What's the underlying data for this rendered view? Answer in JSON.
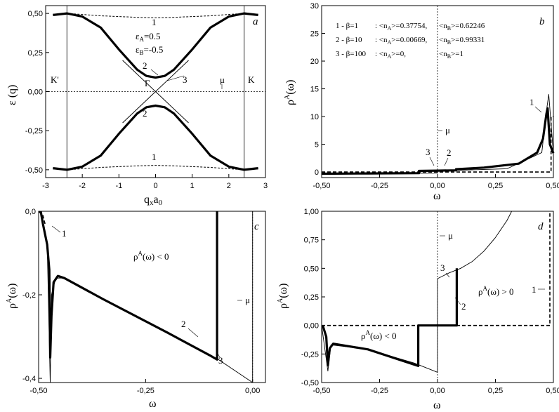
{
  "panels": [
    {
      "letter": "a",
      "xlabel": "q_x a_0",
      "ylabel": "ε (q)",
      "xlim": [
        -3,
        3
      ],
      "ylim": [
        -0.55,
        0.55
      ],
      "xticks": [
        "-3",
        "-2",
        "-1",
        "0",
        "1",
        "2",
        "3"
      ],
      "xtick_values": [
        -3,
        -2,
        -1,
        0,
        1,
        2,
        3
      ],
      "yticks": [
        "-0,50",
        "-0,25",
        "0,00",
        "0,25",
        "0,50"
      ],
      "ytick_values": [
        -0.5,
        -0.25,
        0,
        0.25,
        0.5
      ],
      "annotations": [
        "1",
        "2",
        "3",
        "2",
        "1",
        "Γ",
        "μ",
        "K'",
        "K",
        "ε_A=0.5",
        "ε_B=-0.5"
      ]
    },
    {
      "letter": "b",
      "xlabel": "ω",
      "ylabel": "ρ^A(ω)",
      "xlim": [
        -0.5,
        0.5
      ],
      "ylim": [
        -1,
        30
      ],
      "xticks": [
        "-0,50",
        "-0,25",
        "0,00",
        "0,25",
        "0,50"
      ],
      "xtick_values": [
        -0.5,
        -0.25,
        0,
        0.25,
        0.5
      ],
      "yticks": [
        "0",
        "5",
        "10",
        "15",
        "20",
        "25",
        "30"
      ],
      "ytick_values": [
        0,
        5,
        10,
        15,
        20,
        25,
        30
      ],
      "legend_lines": [
        [
          "1 - β=1",
          ": <n_A>=0.37754,",
          "<n_B>=0.62246"
        ],
        [
          "2 - β=10",
          ": <n_A>=0.00669,",
          "<n_B>=0.99331"
        ],
        [
          "3 - β=100",
          ": <n_A>=0,",
          "<n_B>=1"
        ]
      ],
      "annotations": [
        "1",
        "2",
        "3",
        "μ"
      ]
    },
    {
      "letter": "c",
      "xlabel": "ω",
      "ylabel": "ρ^A(ω)",
      "xlim": [
        -0.5,
        0.03
      ],
      "ylim": [
        -0.41,
        0.0
      ],
      "xticks": [
        "-0,50",
        "-0,25",
        "0,00"
      ],
      "xtick_values": [
        -0.5,
        -0.25,
        0
      ],
      "yticks": [
        "-0,4",
        "-0,2",
        "0,0"
      ],
      "ytick_values": [
        -0.4,
        -0.2,
        0
      ],
      "annotations": [
        "1",
        "2",
        "3",
        "μ",
        "ρ^A(ω) < 0"
      ]
    },
    {
      "letter": "d",
      "xlabel": "ω",
      "ylabel": "ρ^A(ω)",
      "xlim": [
        -0.5,
        0.5
      ],
      "ylim": [
        -0.5,
        1.0
      ],
      "xticks": [
        "-0,50",
        "-0,25",
        "0,00",
        "0,25",
        "0,50"
      ],
      "xtick_values": [
        -0.5,
        -0.25,
        0,
        0.25,
        0.5
      ],
      "yticks": [
        "-0,50",
        "-0,25",
        "0,00",
        "0,25",
        "0,50",
        "0,75",
        "1,00"
      ],
      "ytick_values": [
        -0.5,
        -0.25,
        0,
        0.25,
        0.5,
        0.75,
        1.0
      ],
      "annotations": [
        "1",
        "2",
        "3",
        "μ",
        "ρ^A(ω) > 0",
        "ρ^A(ω) < 0"
      ]
    }
  ],
  "chart_data": [
    {
      "type": "line",
      "title": "",
      "xlabel": "q_x a_0",
      "ylabel": "ε (q)",
      "xlim": [
        -3,
        3
      ],
      "ylim": [
        -0.55,
        0.55
      ],
      "grid": false,
      "series": [
        {
          "name": "1",
          "style": "dashed thin",
          "x": [
            -2.8,
            -2.4,
            -1.5,
            -0.5,
            0,
            0.5,
            1.5,
            2.4,
            2.8
          ],
          "y": [
            0.495,
            0.5,
            0.485,
            0.475,
            0.472,
            0.475,
            0.485,
            0.5,
            0.495
          ]
        },
        {
          "name": "1",
          "style": "dashed thin",
          "x": [
            -2.8,
            -2.4,
            -1.5,
            -0.5,
            0,
            0.5,
            1.5,
            2.4,
            2.8
          ],
          "y": [
            -0.495,
            -0.5,
            -0.485,
            -0.475,
            -0.472,
            -0.475,
            -0.485,
            -0.5,
            -0.495
          ]
        },
        {
          "name": "2",
          "style": "thick",
          "x": [
            -2.8,
            -2.42,
            -2.0,
            -1.5,
            -1.0,
            -0.5,
            -0.25,
            0,
            0.25,
            0.5,
            1.0,
            1.5,
            2.0,
            2.42,
            2.8
          ],
          "y": [
            0.49,
            0.5,
            0.48,
            0.41,
            0.27,
            0.14,
            0.1,
            0.09,
            0.1,
            0.14,
            0.27,
            0.41,
            0.48,
            0.5,
            0.49
          ]
        },
        {
          "name": "2",
          "style": "thick",
          "x": [
            -2.8,
            -2.42,
            -2.0,
            -1.5,
            -1.0,
            -0.5,
            -0.25,
            0,
            0.25,
            0.5,
            1.0,
            1.5,
            2.0,
            2.42,
            2.8
          ],
          "y": [
            -0.49,
            -0.5,
            -0.48,
            -0.41,
            -0.27,
            -0.14,
            -0.1,
            -0.09,
            -0.1,
            -0.14,
            -0.27,
            -0.41,
            -0.48,
            -0.5,
            -0.49
          ]
        },
        {
          "name": "3",
          "style": "thin",
          "x": [
            -0.9,
            0,
            0.9
          ],
          "y": [
            0.2,
            0,
            0.2
          ]
        },
        {
          "name": "3",
          "style": "thin",
          "x": [
            -0.9,
            0,
            0.9
          ],
          "y": [
            -0.2,
            0,
            -0.2
          ]
        }
      ],
      "vlines": [
        -2.42,
        2.42
      ],
      "hline_mu": 0
    },
    {
      "type": "line",
      "title": "",
      "xlabel": "ω",
      "ylabel": "ρ^A(ω)",
      "xlim": [
        -0.5,
        0.5
      ],
      "ylim": [
        -1,
        30
      ],
      "grid": false,
      "series": [
        {
          "name": "1",
          "style": "dashed",
          "x": [
            -0.5,
            0.49,
            0.49,
            0.5
          ],
          "y": [
            0,
            0,
            10,
            10
          ]
        },
        {
          "name": "2",
          "style": "thick",
          "x": [
            -0.5,
            -0.3,
            -0.08,
            -0.08,
            0.0,
            0.08,
            0.08,
            0.2,
            0.35,
            0.43,
            0.455,
            0.47,
            0.475,
            0.485,
            0.5
          ],
          "y": [
            -0.3,
            -0.25,
            -0.2,
            0.2,
            0.25,
            0.3,
            0.5,
            0.8,
            1.5,
            3.5,
            6,
            10.5,
            11.5,
            5,
            3.4
          ]
        },
        {
          "name": "3",
          "style": "thin",
          "x": [
            -0.5,
            0,
            0,
            0.3,
            0.45,
            0.47,
            0.48,
            0.5
          ],
          "y": [
            -0.35,
            -0.2,
            0.2,
            0.6,
            3.5,
            11,
            14,
            3.3
          ]
        }
      ],
      "vline_mu": 0
    },
    {
      "type": "line",
      "title": "",
      "xlabel": "ω",
      "ylabel": "ρ^A(ω)",
      "xlim": [
        -0.5,
        0.03
      ],
      "ylim": [
        -0.41,
        0.0
      ],
      "grid": false,
      "series": [
        {
          "name": "1",
          "style": "dashed",
          "x": [
            -0.5,
            -0.49,
            -0.485
          ],
          "y": [
            0,
            -0.01,
            -0.03
          ]
        },
        {
          "name": "2",
          "style": "thick",
          "x": [
            -0.495,
            -0.49,
            -0.48,
            -0.475,
            -0.473,
            -0.47,
            -0.465,
            -0.455,
            -0.44,
            -0.35,
            -0.2,
            -0.1,
            -0.083,
            -0.083
          ],
          "y": [
            0,
            -0.03,
            -0.08,
            -0.14,
            -0.35,
            -0.25,
            -0.17,
            -0.155,
            -0.16,
            -0.21,
            -0.29,
            -0.345,
            -0.355,
            0
          ]
        },
        {
          "name": "3",
          "style": "thin",
          "x": [
            -0.495,
            -0.48,
            -0.473,
            -0.47,
            -0.46,
            -0.44,
            -0.2,
            -0.08,
            0.0,
            0.0
          ],
          "y": [
            0,
            -0.08,
            -0.41,
            -0.2,
            -0.16,
            -0.16,
            -0.29,
            -0.355,
            -0.41,
            0
          ]
        }
      ],
      "vline_mu": 0
    },
    {
      "type": "line",
      "title": "",
      "xlabel": "ω",
      "ylabel": "ρ^A(ω)",
      "xlim": [
        -0.5,
        0.5
      ],
      "ylim": [
        -0.5,
        1.0
      ],
      "grid": false,
      "series": [
        {
          "name": "1",
          "style": "dashed",
          "x": [
            -0.5,
            0.485,
            0.485
          ],
          "y": [
            0,
            0,
            1.0
          ]
        },
        {
          "name": "2",
          "style": "thick",
          "x": [
            -0.495,
            -0.48,
            -0.473,
            -0.465,
            -0.45,
            -0.3,
            -0.15,
            -0.083,
            -0.083,
            0.083,
            0.083
          ],
          "y": [
            0,
            -0.1,
            -0.35,
            -0.2,
            -0.16,
            -0.21,
            -0.31,
            -0.355,
            0,
            0,
            0.5
          ]
        },
        {
          "name": "3",
          "style": "thin",
          "x": [
            -0.5,
            -0.473,
            -0.46,
            -0.3,
            -0.1,
            0,
            0,
            0.05,
            0.1,
            0.15,
            0.2,
            0.25,
            0.3,
            0.32
          ],
          "y": [
            0,
            -0.4,
            -0.17,
            -0.21,
            -0.33,
            -0.41,
            0.41,
            0.46,
            0.5,
            0.56,
            0.65,
            0.77,
            0.92,
            1.0
          ]
        }
      ],
      "vline_mu": 0
    }
  ]
}
